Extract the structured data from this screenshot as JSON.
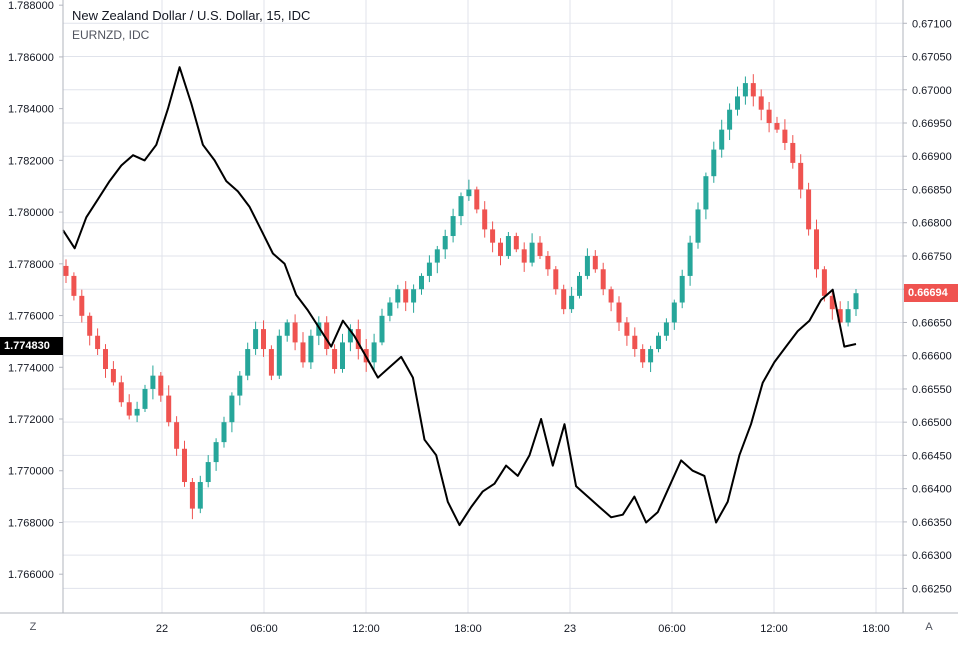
{
  "legend": {
    "line1": "New Zealand Dollar / U.S. Dollar, 15, IDC",
    "line2": "EURNZD, IDC"
  },
  "corner_buttons": {
    "left": "Z",
    "right": "A"
  },
  "colors": {
    "up": "#26a69a",
    "down": "#ef5350",
    "line": "#000000",
    "grid": "#e0e3eb",
    "axis_text": "#131722",
    "left_badge_bg": "#000000",
    "right_badge_bg": "#ef5350"
  },
  "badges": {
    "left": {
      "label": "1.774830",
      "value": 1.77483
    },
    "right": {
      "label": "0.66694",
      "value": 0.66694
    }
  },
  "chart_data": {
    "type": "line",
    "grid": true,
    "x_ticks": [
      "22",
      "06:00",
      "12:00",
      "18:00",
      "23",
      "06:00",
      "12:00",
      "18:00"
    ],
    "left_axis": {
      "series": "EURNZD, IDC",
      "range": [
        1.7645,
        1.7882
      ],
      "ticks": [
        "1.788000",
        "1.786000",
        "1.784000",
        "1.782000",
        "1.780000",
        "1.778000",
        "1.776000",
        "1.774000",
        "1.772000",
        "1.770000",
        "1.768000",
        "1.766000"
      ],
      "tick_values": [
        1.788,
        1.786,
        1.784,
        1.782,
        1.78,
        1.778,
        1.776,
        1.774,
        1.772,
        1.77,
        1.768,
        1.766
      ]
    },
    "right_axis": {
      "series": "New Zealand Dollar / U.S. Dollar, 15, IDC",
      "range": [
        0.66213,
        0.67135
      ],
      "ticks": [
        "0.67100",
        "0.67050",
        "0.67000",
        "0.66950",
        "0.66900",
        "0.66850",
        "0.66800",
        "0.66750",
        "0.66700",
        "0.66650",
        "0.66600",
        "0.66550",
        "0.66500",
        "0.66450",
        "0.66400",
        "0.66350",
        "0.66300",
        "0.66250"
      ],
      "tick_values": [
        0.671,
        0.6705,
        0.67,
        0.6695,
        0.669,
        0.6685,
        0.668,
        0.6675,
        0.667,
        0.6665,
        0.666,
        0.6655,
        0.665,
        0.6645,
        0.664,
        0.6635,
        0.663,
        0.6625
      ]
    },
    "nzdusd_closes": [
      0.6672,
      0.6669,
      0.6666,
      0.6663,
      0.6661,
      0.6658,
      0.6656,
      0.6653,
      0.6651,
      0.6652,
      0.6655,
      0.6657,
      0.6654,
      0.665,
      0.6646,
      0.6641,
      0.6637,
      0.6641,
      0.6644,
      0.6647,
      0.665,
      0.6654,
      0.6657,
      0.6661,
      0.6664,
      0.6661,
      0.6657,
      0.6663,
      0.6665,
      0.6662,
      0.6659,
      0.6663,
      0.6665,
      0.6661,
      0.6658,
      0.6662,
      0.6664,
      0.6661,
      0.6659,
      0.6662,
      0.6666,
      0.6668,
      0.667,
      0.6668,
      0.667,
      0.6672,
      0.6674,
      0.6676,
      0.6678,
      0.6681,
      0.6684,
      0.6685,
      0.6682,
      0.6679,
      0.6677,
      0.6675,
      0.6678,
      0.6676,
      0.6674,
      0.6677,
      0.6675,
      0.6673,
      0.667,
      0.6667,
      0.6669,
      0.6672,
      0.6675,
      0.6673,
      0.667,
      0.6668,
      0.6665,
      0.6663,
      0.6661,
      0.6659,
      0.6661,
      0.6663,
      0.6665,
      0.6668,
      0.6672,
      0.6677,
      0.6682,
      0.6687,
      0.6691,
      0.6694,
      0.6697,
      0.6699,
      0.6701,
      0.6699,
      0.6697,
      0.6695,
      0.6694,
      0.6692,
      0.6689,
      0.6685,
      0.6679,
      0.6673,
      0.6669,
      0.6667,
      0.6665,
      0.6667,
      0.66694
    ],
    "eurnzd_closes": [
      1.7793,
      1.7786,
      1.7798,
      1.7805,
      1.7812,
      1.7818,
      1.7822,
      1.782,
      1.7826,
      1.784,
      1.7856,
      1.7842,
      1.7826,
      1.782,
      1.7812,
      1.7808,
      1.7802,
      1.7793,
      1.7784,
      1.778,
      1.7768,
      1.7762,
      1.7755,
      1.7748,
      1.7758,
      1.7752,
      1.7744,
      1.7736,
      1.774,
      1.7744,
      1.7736,
      1.7712,
      1.7706,
      1.7688,
      1.7679,
      1.7686,
      1.7692,
      1.7695,
      1.7702,
      1.7698,
      1.7706,
      1.772,
      1.7702,
      1.7718,
      1.7694,
      1.769,
      1.7686,
      1.7682,
      1.7683,
      1.769,
      1.768,
      1.7684,
      1.7694,
      1.7704,
      1.77,
      1.7698,
      1.768,
      1.7688,
      1.7706,
      1.7718,
      1.7734,
      1.7742,
      1.7748,
      1.7754,
      1.7758,
      1.7766,
      1.777,
      1.7748,
      1.7749
    ]
  }
}
